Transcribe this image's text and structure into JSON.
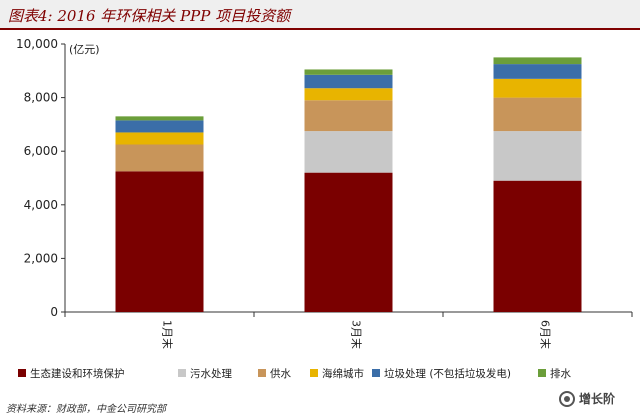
{
  "title": "图表4: 2016 年环保相关 PPP 项目投资额",
  "source": "资料来源：财政部，中金公司研究部",
  "watermark": "增长阶",
  "chart_data": {
    "type": "bar",
    "stacked": true,
    "categories": [
      "1月末",
      "3月末",
      "6月末"
    ],
    "ylim": [
      0,
      10000
    ],
    "yticks": [
      0,
      2000,
      4000,
      6000,
      8000,
      10000
    ],
    "ytick_labels": [
      "0",
      "2,000",
      "4,000",
      "6,000",
      "8,000",
      "10,000"
    ],
    "unit_label": "(亿元)",
    "grid": false,
    "legend_position": "bottom",
    "series": [
      {
        "name": "生态建设和环境保护",
        "color": "#7a0000",
        "values": [
          5250,
          5200,
          4900
        ]
      },
      {
        "name": "污水处理",
        "color": "#c8c8c8",
        "values": [
          0,
          1550,
          1850
        ]
      },
      {
        "name": "供水",
        "color": "#c8955a",
        "values": [
          1000,
          1150,
          1250
        ]
      },
      {
        "name": "海绵城市",
        "color": "#e8b400",
        "values": [
          450,
          450,
          700
        ]
      },
      {
        "name": "垃圾处理 (不包括垃圾发电)",
        "color": "#3b6ea8",
        "values": [
          450,
          500,
          550
        ]
      },
      {
        "name": "排水",
        "color": "#6b9e3a",
        "values": [
          150,
          200,
          250
        ]
      }
    ]
  }
}
